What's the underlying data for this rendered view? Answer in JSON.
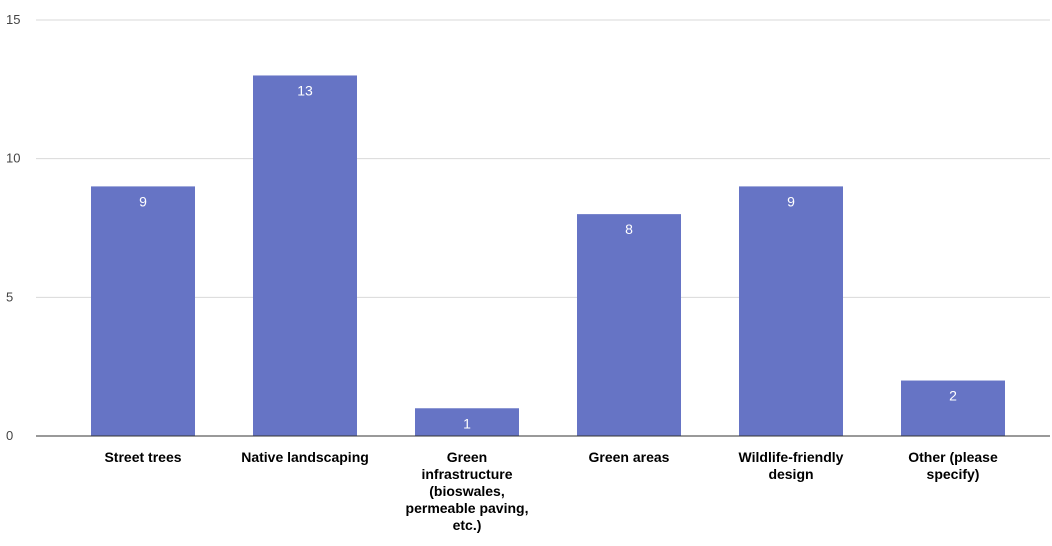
{
  "chart_data": {
    "type": "bar",
    "title": "",
    "xlabel": "",
    "ylabel": "",
    "categories": [
      [
        "Street trees"
      ],
      [
        "Native landscaping"
      ],
      [
        "Green",
        "infrastructure",
        "(bioswales,",
        "permeable paving,",
        "etc.)"
      ],
      [
        "Green areas"
      ],
      [
        "Wildlife-friendly",
        "design"
      ],
      [
        "Other (please",
        "specify)"
      ]
    ],
    "values": [
      9,
      13,
      1,
      8,
      9,
      2
    ],
    "ylim": [
      0,
      15
    ],
    "yticks": [
      0,
      5,
      10,
      15
    ],
    "grid": true,
    "legend": "none",
    "data_labels": true,
    "colors": {
      "bar": "#6674c5",
      "gridline": "#d9d9d9",
      "baseline": "#333333"
    }
  }
}
